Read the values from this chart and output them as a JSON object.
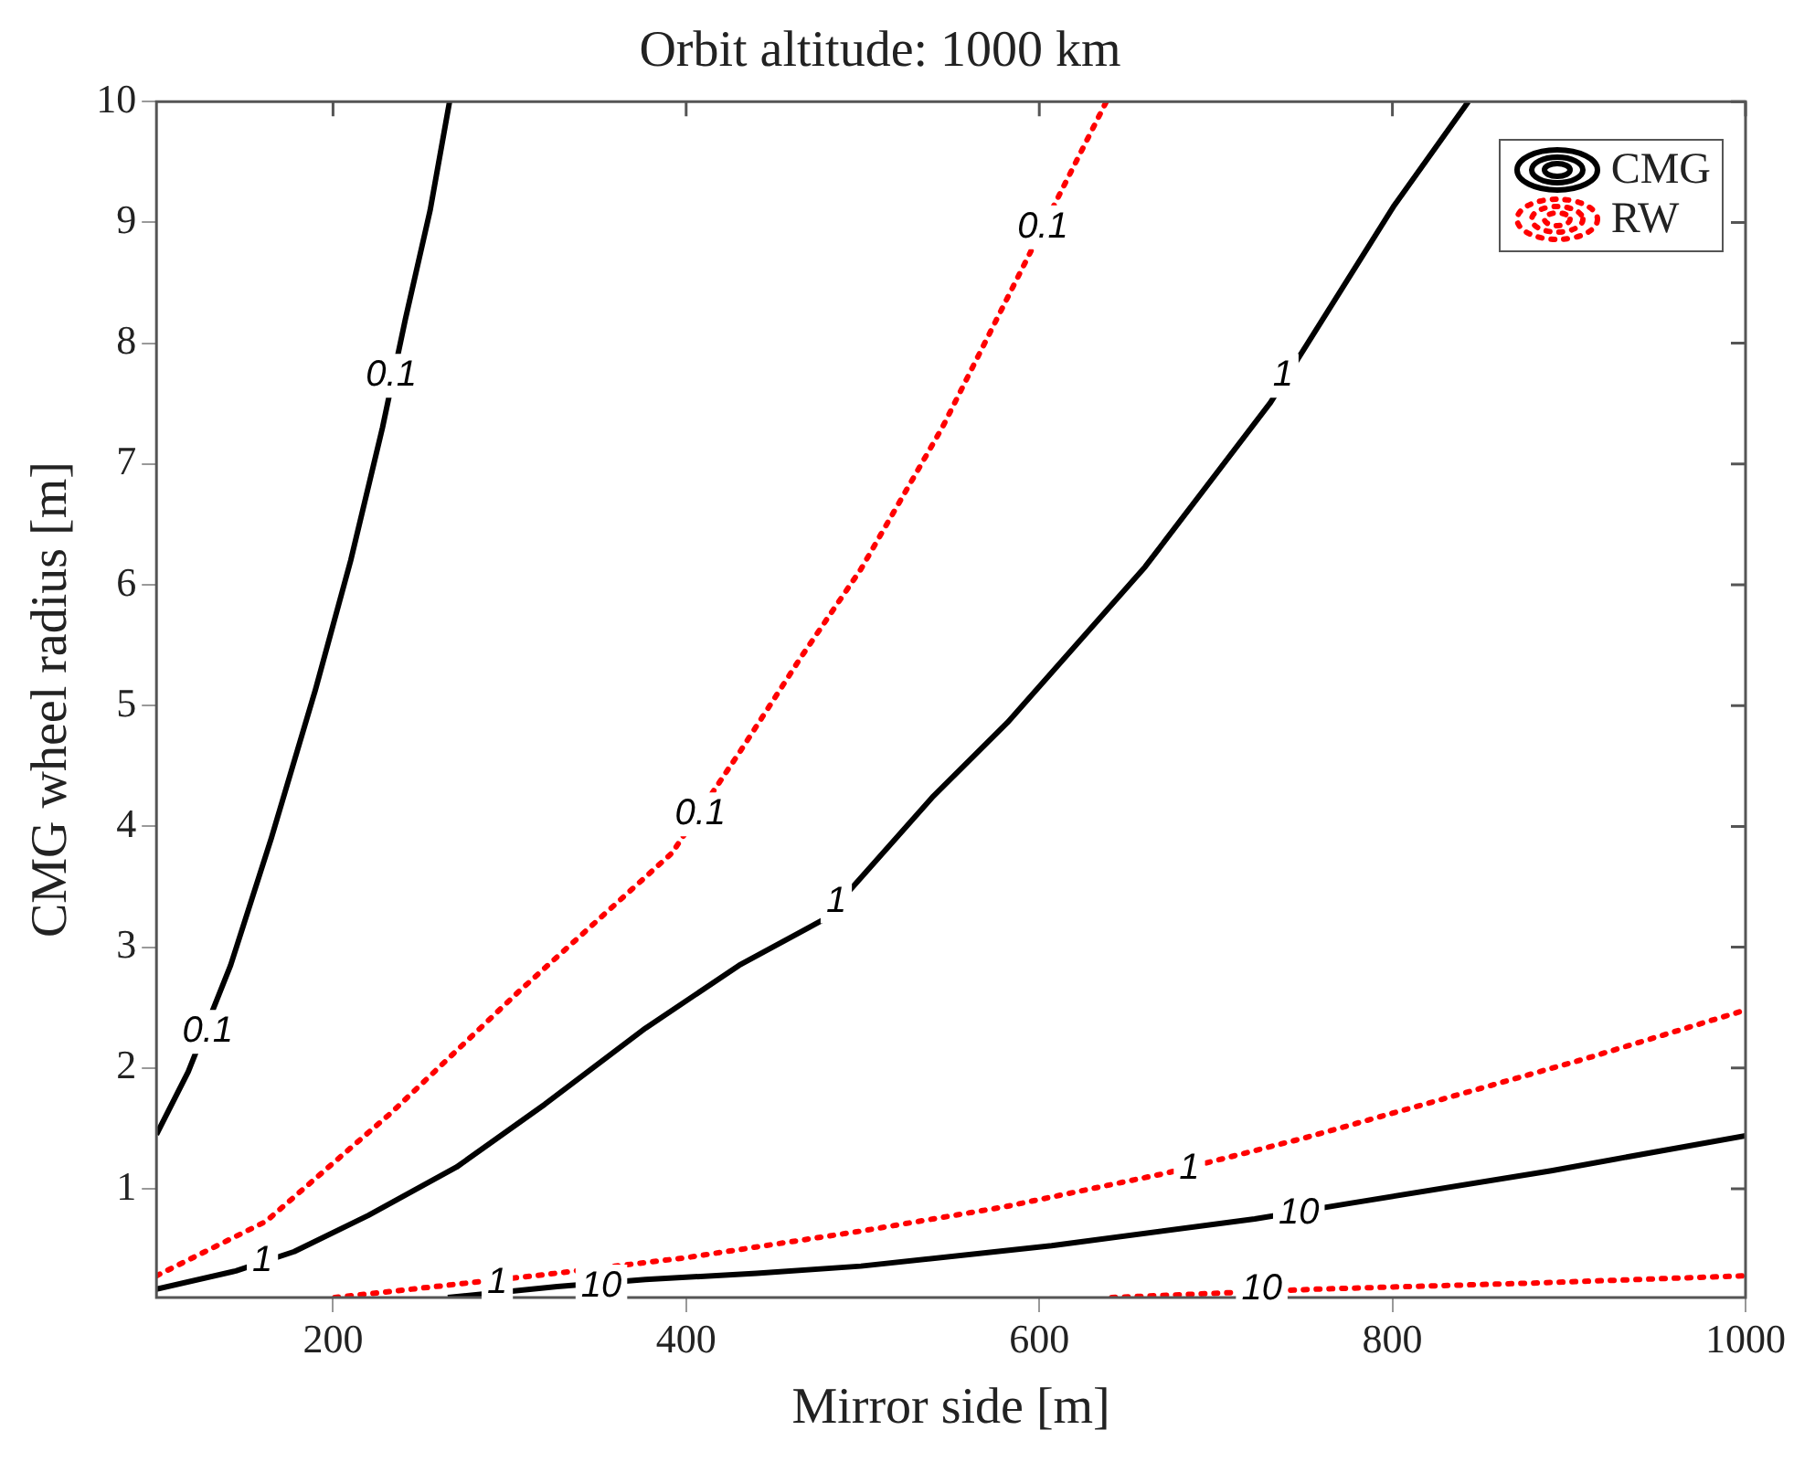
{
  "chart_data": {
    "type": "line",
    "title": "Orbit altitude: 1000 km",
    "xlabel": "Mirror side [m]",
    "ylabel": "CMG wheel radius [m]",
    "xlim": [
      100,
      1000
    ],
    "xticks": [
      200,
      400,
      600,
      800,
      1000
    ],
    "ylim": [
      0.1,
      10
    ],
    "yticks": [
      1,
      2,
      3,
      4,
      5,
      6,
      7,
      8,
      9,
      10
    ],
    "grid": false,
    "legend": "top right",
    "marker": "none",
    "series": [
      {
        "name": "CMG",
        "color": "#000000",
        "line_style": "solid",
        "x": [
          100,
          118,
          142,
          165,
          190,
          210,
          228,
          241,
          255,
          266
        ],
        "values": [
          1.45,
          1.97,
          2.85,
          3.9,
          5.13,
          6.2,
          7.3,
          8.2,
          9.1,
          10
        ]
      },
      {
        "color": "#000000",
        "line_style": "solid",
        "x": [
          100,
          145,
          178,
          220,
          270,
          320,
          377,
          430,
          478,
          540,
          582,
          660,
          731,
          801,
          843
        ],
        "values": [
          0.17,
          0.32,
          0.48,
          0.78,
          1.18,
          1.7,
          2.33,
          2.85,
          3.23,
          4.25,
          4.86,
          6.15,
          7.51,
          9.14,
          10
        ]
      },
      {
        "color": "#000000",
        "line_style": "solid",
        "x": [
          265,
          327,
          377,
          440,
          499,
          607,
          722,
          776,
          890,
          1000
        ],
        "values": [
          0.1,
          0.19,
          0.25,
          0.3,
          0.36,
          0.53,
          0.75,
          0.88,
          1.15,
          1.44
        ]
      },
      {
        "name": "RW",
        "color": "#ff0000",
        "line_style": "dotted",
        "x": [
          100,
          162,
          233,
          305,
          392,
          431,
          465,
          499,
          545,
          589,
          638
        ],
        "values": [
          0.28,
          0.73,
          1.63,
          2.63,
          3.78,
          4.63,
          5.4,
          6.13,
          7.3,
          8.58,
          10
        ]
      },
      {
        "color": "#ff0000",
        "line_style": "dotted",
        "x": [
          201,
          320,
          400,
          499,
          580,
          672,
          750,
          823,
          910,
          1000
        ],
        "values": [
          0.1,
          0.29,
          0.43,
          0.65,
          0.85,
          1.13,
          1.42,
          1.72,
          2.08,
          2.48
        ]
      },
      {
        "color": "#ff0000",
        "line_style": "dotted",
        "x": [
          641,
          758,
          880,
          1000
        ],
        "values": [
          0.1,
          0.17,
          0.22,
          0.28
        ]
      }
    ],
    "annotations": [
      {
        "text": "0.1",
        "x": 233,
        "y": 7.73
      },
      {
        "text": "0.1",
        "x": 129,
        "y": 2.3
      },
      {
        "text": "1",
        "x": 160,
        "y": 0.4
      },
      {
        "text": "1",
        "x": 485,
        "y": 3.38
      },
      {
        "text": "1",
        "x": 738,
        "y": 7.73
      },
      {
        "text": "10",
        "x": 352,
        "y": 0.19
      },
      {
        "text": "10",
        "x": 747,
        "y": 0.8
      },
      {
        "text": "0.1",
        "x": 408,
        "y": 4.1
      },
      {
        "text": "0.1",
        "x": 602,
        "y": 8.96
      },
      {
        "text": "1",
        "x": 293,
        "y": 0.22
      },
      {
        "text": "1",
        "x": 685,
        "y": 1.17
      },
      {
        "text": "10",
        "x": 726,
        "y": 0.17
      }
    ]
  }
}
